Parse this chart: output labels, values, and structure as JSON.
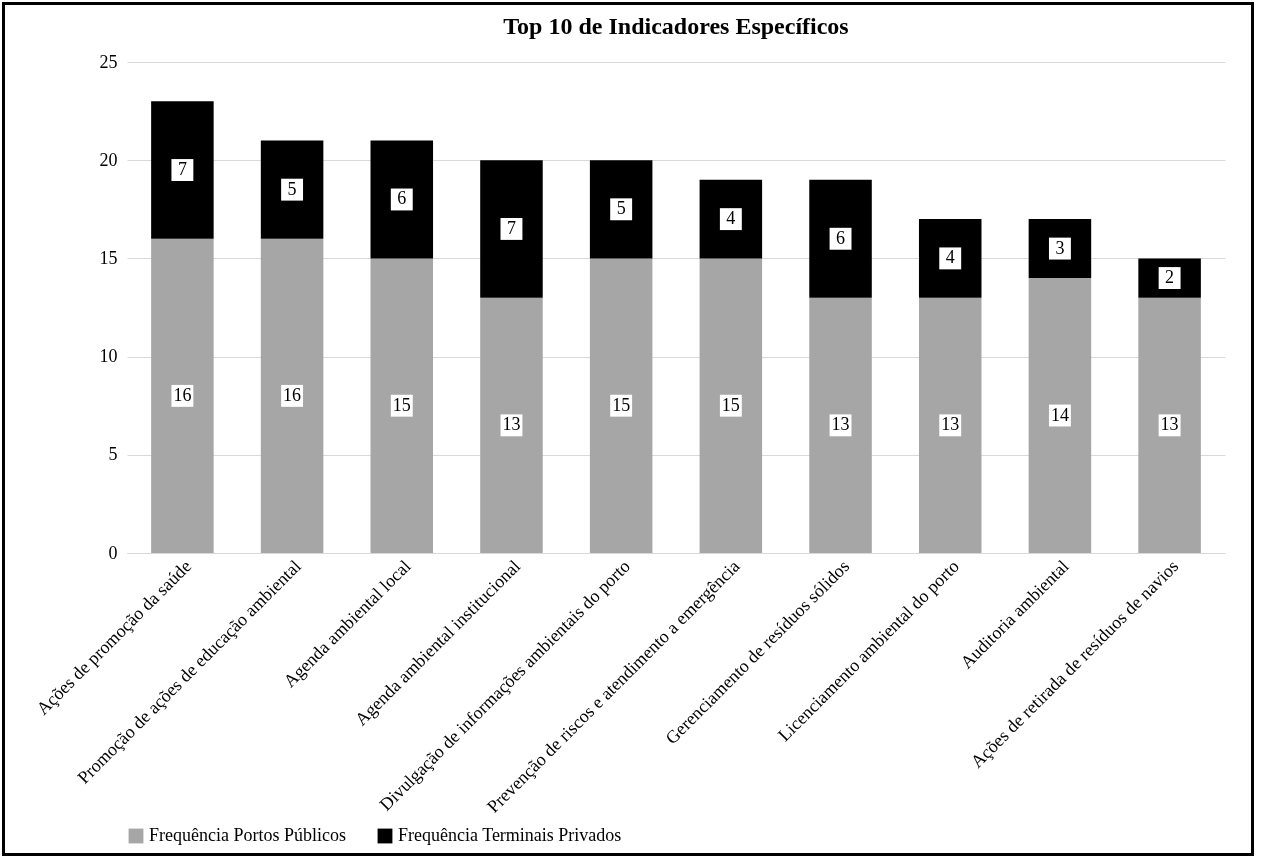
{
  "chart_data": {
    "type": "bar",
    "title": "Top 10 de Indicadores Específicos",
    "stacked": true,
    "data_labels": true,
    "grid": "y",
    "legend": "bottom",
    "categories": [
      "Ações de promoção da saúde",
      "Promoção de ações de educação ambiental",
      "Agenda ambiental local",
      "Agenda ambiental institucional",
      "Divulgação de informações ambientais do porto",
      "Prevenção de riscos e atendimento a emergência",
      "Gerenciamento de resíduos sólidos",
      "Licenciamento ambiental do porto",
      "Auditoria ambiental",
      "Ações de retirada de resíduos de navios"
    ],
    "series": [
      {
        "name": "Frequência Portos Públicos",
        "color": "#a6a6a6",
        "values": [
          16,
          16,
          15,
          13,
          15,
          15,
          13,
          13,
          14,
          13
        ]
      },
      {
        "name": "Frequência Terminais Privados",
        "color": "#000000",
        "values": [
          7,
          5,
          6,
          7,
          5,
          4,
          6,
          4,
          3,
          2
        ]
      }
    ],
    "ylim": [
      0,
      25
    ],
    "yticks": [
      0,
      5,
      10,
      15,
      20,
      25
    ]
  }
}
